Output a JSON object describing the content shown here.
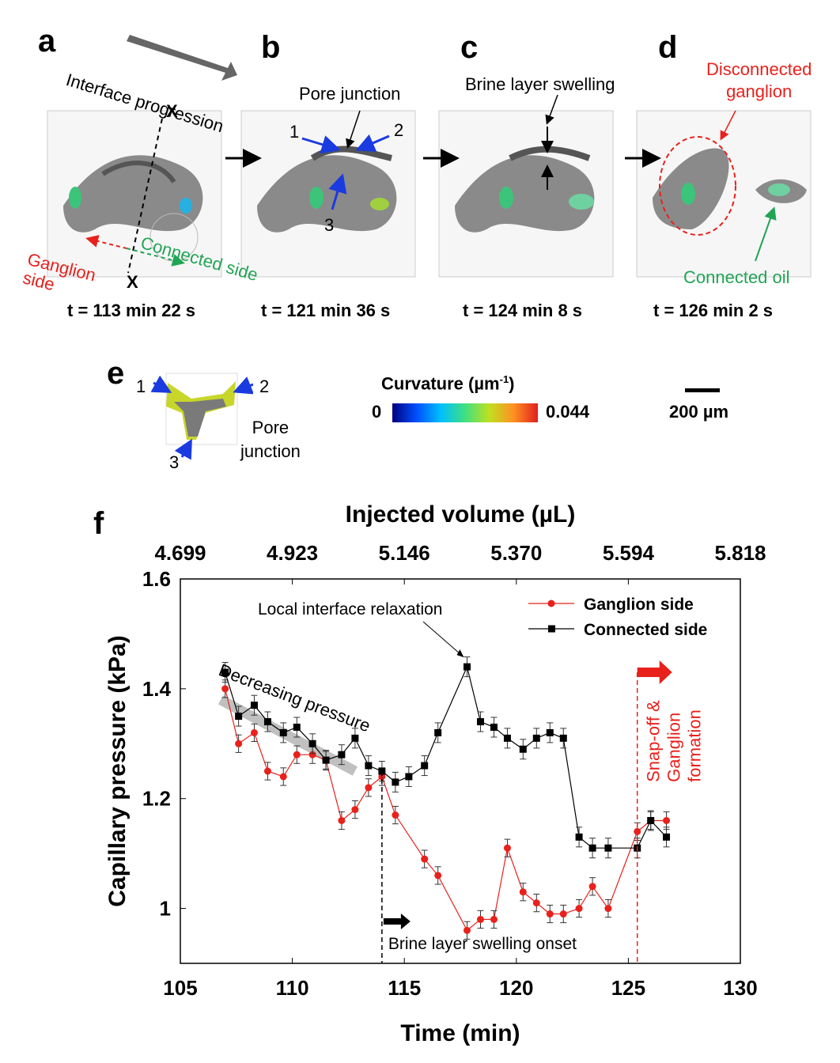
{
  "panels": {
    "a": {
      "label": "a",
      "time": "t = 113 min 22 s",
      "interface_progression": "Interface progression",
      "x_marker": "X",
      "ganglion_side": "Ganglion\nside",
      "connected_side": "Connected side"
    },
    "b": {
      "label": "b",
      "time": "t = 121 min 36 s",
      "pore_junction": "Pore junction",
      "arrow_1": "1",
      "arrow_2": "2",
      "arrow_3": "3"
    },
    "c": {
      "label": "c",
      "time": "t = 124 min 8 s",
      "brine_layer_swelling": "Brine layer swelling"
    },
    "d": {
      "label": "d",
      "time": "t = 126 min 2 s",
      "disconnected_ganglion": "Disconnected\nganglion",
      "connected_oil": "Connected oil"
    },
    "e": {
      "label": "e",
      "arrow_1": "1",
      "arrow_2": "2",
      "arrow_3": "3",
      "pore_junction": "Pore\njunction"
    },
    "f": {
      "label": "f"
    }
  },
  "colorbar": {
    "title": "Curvature (µm",
    "title_sup": "-1",
    "title_end": ")",
    "min": "0",
    "max": "0.044"
  },
  "scalebar": {
    "label": "200 µm"
  },
  "colors": {
    "ganglion": "#e8211c",
    "connected": "#000000",
    "connected_label": "#22a455"
  },
  "chart_data": {
    "type": "line",
    "xlabel": "Time (min)",
    "ylabel": "Capillary pressure (kPa)",
    "top_xlabel": "Injected volume (µL)",
    "xlim": [
      105,
      130
    ],
    "ylim": [
      0.9,
      1.6
    ],
    "xticks": [
      "105",
      "110",
      "115",
      "120",
      "125",
      "130"
    ],
    "yticks": [
      "1",
      "1.2",
      "1.4",
      "1.6"
    ],
    "top_ticks": [
      "4.699",
      "4.923",
      "5.146",
      "5.370",
      "5.594",
      "5.818"
    ],
    "legend_position": "top-right",
    "series": [
      {
        "name": "Ganglion side",
        "color": "#e8211c",
        "marker": "circle",
        "points": [
          [
            107.0,
            1.4
          ],
          [
            107.6,
            1.3
          ],
          [
            108.3,
            1.32
          ],
          [
            108.9,
            1.25
          ],
          [
            109.6,
            1.24
          ],
          [
            110.2,
            1.28
          ],
          [
            110.9,
            1.28
          ],
          [
            111.5,
            1.27
          ],
          [
            112.2,
            1.16
          ],
          [
            112.8,
            1.18
          ],
          [
            113.4,
            1.22
          ],
          [
            114.0,
            1.24
          ],
          [
            114.6,
            1.17
          ],
          [
            115.9,
            1.09
          ],
          [
            116.5,
            1.06
          ],
          [
            117.8,
            0.96
          ],
          [
            118.4,
            0.98
          ],
          [
            119.0,
            0.98
          ],
          [
            119.6,
            1.11
          ],
          [
            120.3,
            1.03
          ],
          [
            120.9,
            1.01
          ],
          [
            121.5,
            0.99
          ],
          [
            122.1,
            0.99
          ],
          [
            122.8,
            1.0
          ],
          [
            123.4,
            1.04
          ],
          [
            124.1,
            1.0
          ],
          [
            125.4,
            1.14
          ],
          [
            126.0,
            1.16
          ],
          [
            126.7,
            1.16
          ]
        ],
        "err": 0.016
      },
      {
        "name": "Connected side",
        "color": "#000000",
        "marker": "square",
        "points": [
          [
            107.0,
            1.43
          ],
          [
            107.6,
            1.35
          ],
          [
            108.3,
            1.37
          ],
          [
            108.9,
            1.34
          ],
          [
            109.6,
            1.32
          ],
          [
            110.2,
            1.33
          ],
          [
            110.9,
            1.3
          ],
          [
            111.5,
            1.27
          ],
          [
            112.2,
            1.28
          ],
          [
            112.8,
            1.31
          ],
          [
            113.4,
            1.26
          ],
          [
            114.0,
            1.25
          ],
          [
            114.6,
            1.23
          ],
          [
            115.2,
            1.24
          ],
          [
            115.9,
            1.26
          ],
          [
            116.5,
            1.32
          ],
          [
            117.8,
            1.44
          ],
          [
            118.4,
            1.34
          ],
          [
            119.0,
            1.33
          ],
          [
            119.6,
            1.31
          ],
          [
            120.3,
            1.29
          ],
          [
            120.9,
            1.31
          ],
          [
            121.5,
            1.32
          ],
          [
            122.1,
            1.31
          ],
          [
            122.8,
            1.13
          ],
          [
            123.4,
            1.11
          ],
          [
            124.1,
            1.11
          ],
          [
            125.4,
            1.11
          ],
          [
            126.0,
            1.16
          ],
          [
            126.7,
            1.13
          ]
        ],
        "err": 0.018
      }
    ],
    "annotations": {
      "relaxation": "Local interface relaxation",
      "decreasing": "Decreasing pressure",
      "brine_onset": "Brine layer swelling onset",
      "snapoff": "Snap-off &\nGanglion\nformation",
      "brine_onset_x": 114.0,
      "snapoff_x": 125.4
    }
  }
}
